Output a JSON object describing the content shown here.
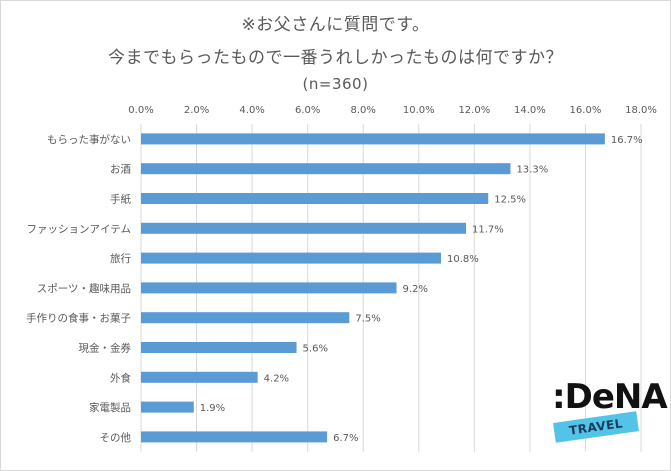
{
  "title_lines": [
    "※お父さんに質問です。",
    "今までもらったもので一番うれしかったものは何ですか？",
    "(n=360)"
  ],
  "logo": {
    "word": ":DeNA",
    "banner": "TRAVEL"
  },
  "colors": {
    "bar": "#5b9bd5",
    "grid": "#d9d9d9",
    "text": "#595959"
  },
  "chart_data": {
    "type": "bar",
    "orientation": "horizontal",
    "categories": [
      "もらった事がない",
      "お酒",
      "手紙",
      "ファッションアイテム",
      "旅行",
      "スポーツ・趣味用品",
      "手作りの食事・お菓子",
      "現金・金券",
      "外食",
      "家電製品",
      "その他"
    ],
    "values": [
      16.7,
      13.3,
      12.5,
      11.7,
      10.8,
      9.2,
      7.5,
      5.6,
      4.2,
      1.9,
      6.7
    ],
    "value_labels": [
      "16.7%",
      "13.3%",
      "12.5%",
      "11.7%",
      "10.8%",
      "9.2%",
      "7.5%",
      "5.6%",
      "4.2%",
      "1.9%",
      "6.7%"
    ],
    "x_ticks": [
      "0.0%",
      "2.0%",
      "4.0%",
      "6.0%",
      "8.0%",
      "10.0%",
      "12.0%",
      "14.0%",
      "16.0%",
      "18.0%"
    ],
    "xlim": [
      0,
      18
    ],
    "axis_position": "top",
    "grid": true,
    "legend": "none"
  }
}
